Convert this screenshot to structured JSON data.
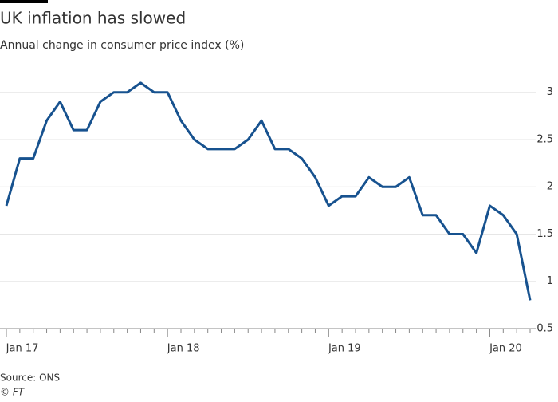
{
  "chart_data": {
    "type": "line",
    "title": "UK inflation has slowed",
    "subtitle": "Annual change in consumer price index (%)",
    "source": "Source: ONS",
    "credit": "© FT",
    "categories": [
      "Jan 17",
      null,
      null,
      null,
      null,
      null,
      null,
      null,
      null,
      null,
      null,
      null,
      "Jan 18",
      null,
      null,
      null,
      null,
      null,
      null,
      null,
      null,
      null,
      null,
      null,
      "Jan 19",
      null,
      null,
      null,
      null,
      null,
      null,
      null,
      null,
      null,
      null,
      null,
      "Jan 20",
      null,
      null,
      null
    ],
    "series": [
      {
        "name": "CPI",
        "color": "#17528f",
        "values": [
          1.8,
          2.3,
          2.3,
          2.7,
          2.9,
          2.6,
          2.6,
          2.9,
          3.0,
          3.0,
          3.1,
          3.0,
          3.0,
          2.7,
          2.5,
          2.4,
          2.4,
          2.4,
          2.5,
          2.7,
          2.4,
          2.4,
          2.3,
          2.1,
          1.8,
          1.9,
          1.9,
          2.1,
          2.0,
          2.0,
          2.1,
          1.7,
          1.7,
          1.5,
          1.5,
          1.3,
          1.8,
          1.7,
          1.5,
          0.8
        ]
      }
    ],
    "ylim": [
      0.5,
      3.2
    ],
    "yticks": [
      0.5,
      1,
      1.5,
      2,
      2.5,
      3
    ],
    "grid": true
  }
}
